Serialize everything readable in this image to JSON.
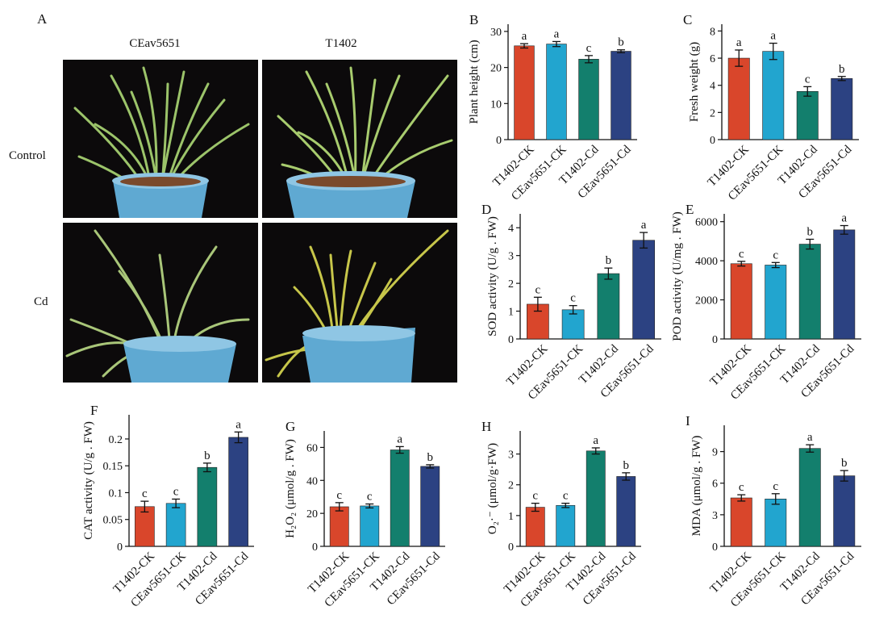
{
  "photo_panel": {
    "letter": "A",
    "col_titles": [
      "CEav5651",
      "T1402"
    ],
    "row_labels": [
      "Control",
      "Cd"
    ]
  },
  "colors": {
    "T1402-CK": "#d9462b",
    "CEav5651-CK": "#22a5cf",
    "T1402-Cd": "#137f6d",
    "CEav5651-Cd": "#2c4282"
  },
  "chart_data": [
    {
      "id": "B",
      "type": "bar",
      "ylabel": "Plant height (cm)",
      "categories": [
        "T1402-CK",
        "CEav5651-CK",
        "T1402-Cd",
        "CEav5651-Cd"
      ],
      "values": [
        26.0,
        26.5,
        22.3,
        24.5
      ],
      "errors": [
        0.6,
        0.7,
        1.0,
        0.4
      ],
      "letters": [
        "a",
        "a",
        "c",
        "b"
      ],
      "ylim": [
        0,
        32
      ],
      "yticks": [
        "0",
        "10",
        "20",
        "30"
      ],
      "ytick_values": [
        0,
        10,
        20,
        30
      ]
    },
    {
      "id": "C",
      "type": "bar",
      "ylabel": "Fresh weight (g)",
      "categories": [
        "T1402-CK",
        "CEav5651-CK",
        "T1402-Cd",
        "CEav5651-Cd"
      ],
      "values": [
        6.0,
        6.5,
        3.55,
        4.5
      ],
      "errors": [
        0.6,
        0.6,
        0.35,
        0.15
      ],
      "letters": [
        "a",
        "a",
        "c",
        "b"
      ],
      "ylim": [
        0,
        8.5
      ],
      "yticks": [
        "0",
        "2",
        "4",
        "6",
        "8"
      ],
      "ytick_values": [
        0,
        2,
        4,
        6,
        8
      ]
    },
    {
      "id": "D",
      "type": "bar",
      "ylabel": "SOD activity (U/g . FW)",
      "categories": [
        "T1402-CK",
        "CEav5651-CK",
        "T1402-Cd",
        "CEav5651-Cd"
      ],
      "values": [
        1.25,
        1.05,
        2.35,
        3.55
      ],
      "errors": [
        0.25,
        0.15,
        0.2,
        0.28
      ],
      "letters": [
        "c",
        "c",
        "b",
        "a"
      ],
      "ylim": [
        0,
        4.5
      ],
      "yticks": [
        "0",
        "1",
        "2",
        "3",
        "4"
      ],
      "ytick_values": [
        0,
        1,
        2,
        3,
        4
      ]
    },
    {
      "id": "E",
      "type": "bar",
      "ylabel": "POD activity (U/mg . FW)",
      "categories": [
        "T1402-CK",
        "CEav5651-CK",
        "T1402-Cd",
        "CEav5651-Cd"
      ],
      "values": [
        3850,
        3780,
        4850,
        5580
      ],
      "errors": [
        120,
        130,
        250,
        220
      ],
      "letters": [
        "c",
        "c",
        "b",
        "a"
      ],
      "ylim": [
        0,
        6400
      ],
      "yticks": [
        "0",
        "2000",
        "4000",
        "6000"
      ],
      "ytick_values": [
        0,
        2000,
        4000,
        6000
      ]
    },
    {
      "id": "F",
      "type": "bar",
      "ylabel": "CAT activity (U/g . FW)",
      "categories": [
        "T1402-CK",
        "CEav5651-CK",
        "T1402-Cd",
        "CEav5651-Cd"
      ],
      "values": [
        0.074,
        0.08,
        0.147,
        0.203
      ],
      "errors": [
        0.01,
        0.008,
        0.008,
        0.01
      ],
      "letters": [
        "c",
        "c",
        "b",
        "a"
      ],
      "ylim": [
        0,
        0.245
      ],
      "yticks": [
        "0",
        "0.05",
        "0.1",
        "0.15",
        "0.2"
      ],
      "ytick_values": [
        0,
        0.05,
        0.1,
        0.15,
        0.2
      ]
    },
    {
      "id": "G",
      "type": "bar",
      "ylabel": "H₂O₂ (μmol/g . FW)",
      "categories": [
        "T1402-CK",
        "CEav5651-CK",
        "T1402-Cd",
        "CEav5651-Cd"
      ],
      "values": [
        24,
        24.5,
        58.5,
        48.5
      ],
      "errors": [
        2.5,
        1.2,
        2,
        1
      ],
      "letters": [
        "c",
        "c",
        "a",
        "b"
      ],
      "ylim": [
        0,
        70
      ],
      "yticks": [
        "0",
        "20",
        "40",
        "60"
      ],
      "ytick_values": [
        0,
        20,
        40,
        60
      ]
    },
    {
      "id": "H",
      "type": "bar",
      "ylabel": "O₂·⁻ (μmol/g·FW)",
      "categories": [
        "T1402-CK",
        "CEav5651-CK",
        "T1402-Cd",
        "CEav5651-Cd"
      ],
      "values": [
        1.27,
        1.33,
        3.1,
        2.27
      ],
      "errors": [
        0.13,
        0.07,
        0.1,
        0.12
      ],
      "letters": [
        "c",
        "c",
        "a",
        "b"
      ],
      "ylim": [
        0,
        3.75
      ],
      "yticks": [
        "0",
        "1",
        "2",
        "3"
      ],
      "ytick_values": [
        0,
        1,
        2,
        3
      ]
    },
    {
      "id": "I",
      "type": "bar",
      "ylabel": "MDA (μmol/g . FW)",
      "categories": [
        "T1402-CK",
        "CEav5651-CK",
        "T1402-Cd",
        "CEav5651-Cd"
      ],
      "values": [
        4.6,
        4.5,
        9.3,
        6.7
      ],
      "errors": [
        0.3,
        0.5,
        0.35,
        0.5
      ],
      "letters": [
        "c",
        "c",
        "a",
        "b"
      ],
      "ylim": [
        0,
        11.5
      ],
      "yticks": [
        "0",
        "3",
        "6",
        "9"
      ],
      "ytick_values": [
        0,
        3,
        6,
        9
      ]
    }
  ]
}
